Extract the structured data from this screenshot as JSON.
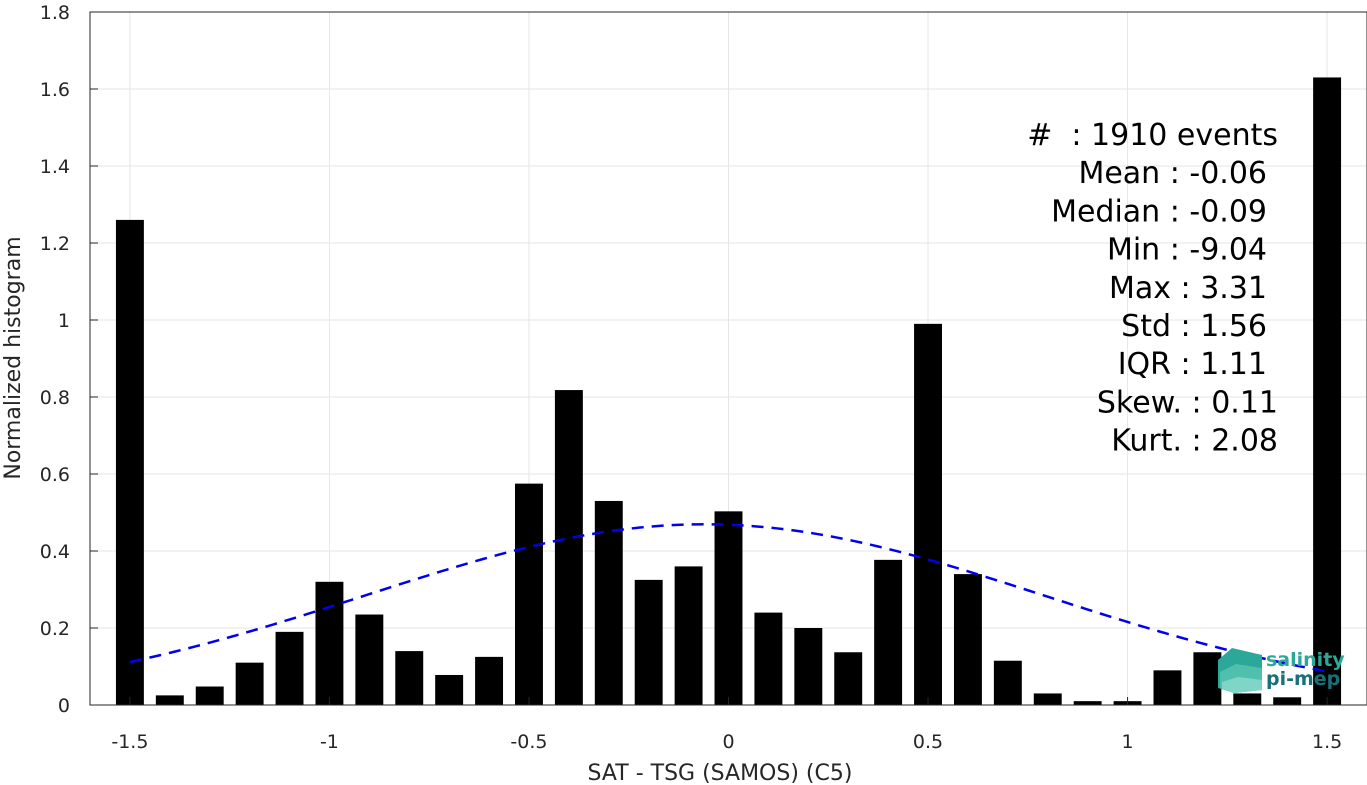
{
  "chart_data": {
    "type": "bar",
    "xlabel": "SAT - TSG (SAMOS) (C5)",
    "ylabel": "Normalized histogram",
    "xlim": [
      -1.6,
      1.6
    ],
    "ylim": [
      0,
      1.8
    ],
    "grid": true,
    "x_ticks": [
      -1.5,
      -1,
      -0.5,
      0,
      0.5,
      1,
      1.5
    ],
    "x_tick_labels": [
      "-1.5",
      "-1",
      "-0.5",
      "0",
      "0.5",
      "1",
      "1.5"
    ],
    "y_ticks": [
      0,
      0.2,
      0.4,
      0.6,
      0.8,
      1,
      1.2,
      1.4,
      1.6,
      1.8
    ],
    "y_tick_labels": [
      "0",
      "0.2",
      "0.4",
      "0.6",
      "0.8",
      "1",
      "1.2",
      "1.4",
      "1.6",
      "1.8"
    ],
    "bar_width": 0.07,
    "x": [
      -1.5,
      -1.4,
      -1.3,
      -1.2,
      -1.1,
      -1.0,
      -0.9,
      -0.8,
      -0.7,
      -0.6,
      -0.5,
      -0.4,
      -0.3,
      -0.2,
      -0.1,
      0.0,
      0.1,
      0.2,
      0.3,
      0.4,
      0.5,
      0.6,
      0.7,
      0.8,
      0.9,
      1.0,
      1.1,
      1.2,
      1.3,
      1.4,
      1.5
    ],
    "values": [
      1.26,
      0.025,
      0.048,
      0.11,
      0.19,
      0.32,
      0.235,
      0.14,
      0.078,
      0.125,
      0.575,
      0.818,
      0.53,
      0.325,
      0.36,
      0.503,
      0.24,
      0.2,
      0.137,
      0.377,
      0.99,
      0.34,
      0.115,
      0.03,
      0.01,
      0.01,
      0.09,
      0.137,
      0.03,
      0.02,
      1.63
    ],
    "bar_color": "#000000",
    "fit_curve": {
      "style": "dashed",
      "color": "#0000ee",
      "mean": -0.06,
      "std": 0.85,
      "x_range": [
        -1.5,
        1.5
      ]
    },
    "stats": [
      "#  : 1910 events",
      "Mean : -0.06",
      "Median : -0.09",
      "Min : -9.04",
      "Max : 3.31",
      "Std : 1.56",
      "IQR : 1.11",
      "Skew. : 0.11",
      "Kurt. : 2.08"
    ]
  },
  "logo": {
    "line1": "salinity",
    "line2": "pi-mep",
    "color1": "#2ca89a",
    "color2": "#1a6f7a"
  }
}
